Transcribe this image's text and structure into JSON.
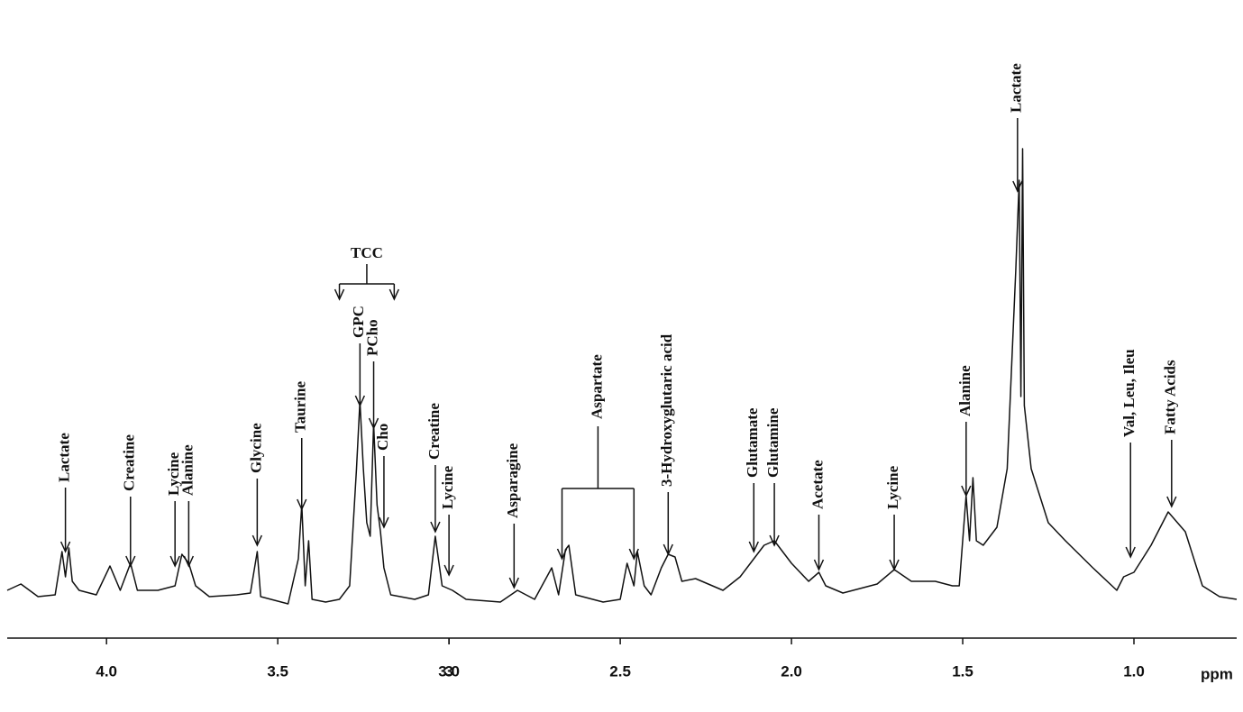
{
  "chart_data": {
    "type": "line",
    "x_label": "ppm",
    "color": "#111111",
    "xlim": [
      4.29,
      0.7
    ],
    "xticks": [
      {
        "value": 4,
        "label": "4.0"
      },
      3.5,
      3,
      {
        "value": 3,
        "label": "3.0"
      },
      2.5,
      {
        "value": 2,
        "label": "2.0"
      },
      1.5,
      {
        "value": 1,
        "label": "1.0"
      }
    ],
    "ylim": [
      0,
      120
    ],
    "x": [
      4.29,
      4.25,
      4.2,
      4.15,
      4.13,
      4.12,
      4.11,
      4.1,
      4.08,
      4.03,
      3.99,
      3.96,
      3.93,
      3.91,
      3.85,
      3.8,
      3.78,
      3.76,
      3.74,
      3.7,
      3.62,
      3.58,
      3.56,
      3.55,
      3.47,
      3.44,
      3.43,
      3.42,
      3.41,
      3.4,
      3.36,
      3.32,
      3.29,
      3.27,
      3.26,
      3.25,
      3.24,
      3.23,
      3.22,
      3.21,
      3.2,
      3.19,
      3.17,
      3.1,
      3.06,
      3.04,
      3.02,
      2.99,
      2.95,
      2.85,
      2.8,
      2.75,
      2.7,
      2.68,
      2.66,
      2.65,
      2.63,
      2.55,
      2.5,
      2.48,
      2.46,
      2.45,
      2.43,
      2.41,
      2.38,
      2.36,
      2.34,
      2.32,
      2.28,
      2.2,
      2.15,
      2.12,
      2.08,
      2.05,
      2.0,
      1.95,
      1.92,
      1.9,
      1.85,
      1.75,
      1.7,
      1.65,
      1.58,
      1.53,
      1.51,
      1.49,
      1.48,
      1.47,
      1.46,
      1.44,
      1.4,
      1.37,
      1.345,
      1.335,
      1.33,
      1.325,
      1.32,
      1.3,
      1.25,
      1.2,
      1.12,
      1.05,
      1.03,
      1.0,
      0.95,
      0.9,
      0.85,
      0.8,
      0.75,
      0.7
    ],
    "values": [
      9,
      10.4,
      7.6,
      8,
      17.6,
      12,
      18.4,
      11,
      9,
      8,
      14.4,
      9,
      15,
      9,
      9,
      10,
      17,
      15,
      10,
      7.6,
      8,
      8.4,
      17.6,
      7.6,
      6,
      16,
      28,
      10,
      20,
      7,
      6.4,
      7,
      10,
      36,
      51,
      36,
      24,
      21,
      46,
      28,
      22,
      14,
      8,
      7,
      8,
      21,
      10,
      9,
      7,
      6.4,
      9,
      7,
      14,
      8,
      18,
      19,
      8,
      6.4,
      7,
      15,
      10,
      17.6,
      10,
      8,
      14,
      17,
      16.4,
      11,
      11.6,
      9,
      12,
      15,
      19,
      20,
      15,
      11,
      13,
      10,
      8.4,
      10.4,
      13.6,
      11,
      11,
      10,
      10,
      30,
      20,
      34,
      20,
      19,
      23,
      36,
      80,
      100,
      52,
      107,
      50,
      36,
      24,
      20,
      14,
      9,
      12,
      13,
      19,
      26.4,
      22,
      10,
      7.6,
      7
    ],
    "annotations": [
      {
        "text": "Lactate",
        "x": 4.12
      },
      {
        "text": "Creatine",
        "x": 3.93
      },
      {
        "text": "Lycine",
        "x": 3.8
      },
      {
        "text": "Alanine",
        "x": 3.76
      },
      {
        "text": "Glycine",
        "x": 3.56
      },
      {
        "text": "Taurine",
        "x": 3.43
      },
      {
        "text": "TCC",
        "x": [
          3.32,
          3.16
        ]
      },
      {
        "text": "GPC",
        "x": 3.26
      },
      {
        "text": "PCho",
        "x": 3.22
      },
      {
        "text": "Cho",
        "x": 3.19
      },
      {
        "text": "Creatine",
        "x": 3.04
      },
      {
        "text": "Lycine",
        "x": 3.0
      },
      {
        "text": "Asparagine",
        "x": 2.81
      },
      {
        "text": "Aspartate",
        "x": [
          2.67,
          2.46
        ]
      },
      {
        "text": "3-Hydroxyglutaric acid",
        "x": 2.36
      },
      {
        "text": "Glutamate",
        "x": 2.11
      },
      {
        "text": "Glutamine",
        "x": 2.05
      },
      {
        "text": "Acetate",
        "x": 1.92
      },
      {
        "text": "Lycine",
        "x": 1.7
      },
      {
        "text": "Alanine",
        "x": 1.49
      },
      {
        "text": "Lactate",
        "x": 1.34
      },
      {
        "text": "Val, Leu, Ileu",
        "x": 1.01
      },
      {
        "text": "Fatty Acids",
        "x": 0.89
      }
    ]
  }
}
